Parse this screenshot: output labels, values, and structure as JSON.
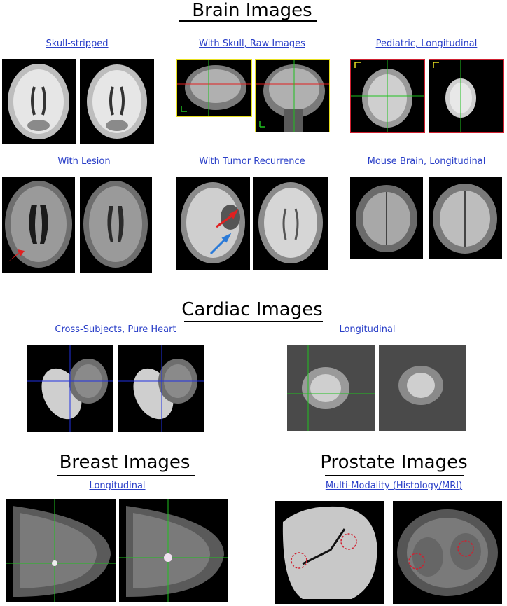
{
  "sections": {
    "brain": {
      "title": "Brain Images",
      "links": {
        "skull_stripped": "Skull-stripped",
        "with_skull": "With Skull, Raw Images",
        "pediatric": "Pediatric, Longitudinal",
        "lesion": "With Lesion",
        "tumor": "With Tumor Recurrence",
        "mouse": "Mouse Brain, Longitudinal"
      }
    },
    "cardiac": {
      "title": "Cardiac Images",
      "links": {
        "cross_subjects": "Cross-Subjects, Pure Heart",
        "longitudinal": "Longitudinal"
      }
    },
    "breast": {
      "title": "Breast Images",
      "links": {
        "longitudinal": "Longitudinal"
      }
    },
    "prostate": {
      "title": "Prostate Images",
      "links": {
        "multi_modality": "Multi-Modality (Histology/MRI)"
      }
    }
  },
  "colors": {
    "link": "#2a3fc8",
    "crosshair_red": "#e02020",
    "crosshair_green": "#20c020",
    "crosshair_blue": "#2030e0",
    "frame_yellow": "#e8e020",
    "frame_red": "#d02030",
    "arrow_red": "#e02020",
    "arrow_blue": "#2a7ad8"
  }
}
